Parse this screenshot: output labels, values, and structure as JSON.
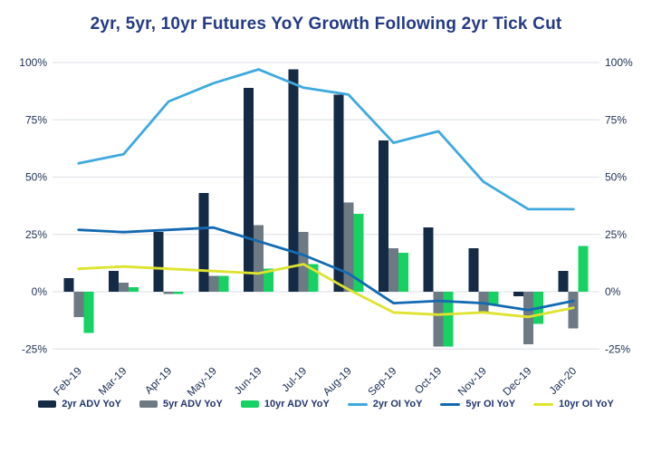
{
  "title": "2yr, 5yr, 10yr Futures YoY Growth Following 2yr Tick Cut",
  "colors": {
    "title_text": "#243a84",
    "axis_text": "#1d3055",
    "gridline": "#e0e4e9"
  },
  "axes": {
    "y_ticks": [
      "100%",
      "75%",
      "50%",
      "25%",
      "0%",
      "-25%"
    ],
    "y_tick_values": [
      100,
      75,
      50,
      25,
      0,
      -25
    ],
    "right_axis_mirrored": true
  },
  "chart_data": {
    "type": "bar",
    "subtype": "grouped-bars-with-lines",
    "categories": [
      "Feb-19",
      "Mar-19",
      "Apr-19",
      "May-19",
      "Jun-19",
      "Jul-19",
      "Aug-19",
      "Sep-19",
      "Oct-19",
      "Nov-19",
      "Dec-19",
      "Jan-20"
    ],
    "bar_series": [
      {
        "name": "2yr ADV YoY",
        "color": "#152b45",
        "values": [
          6,
          9,
          26,
          43,
          89,
          97,
          86,
          66,
          28,
          19,
          -2,
          9
        ]
      },
      {
        "name": "5yr ADV YoY",
        "color": "#6d7983",
        "values": [
          -11,
          4,
          -1,
          7,
          29,
          26,
          39,
          19,
          -24,
          -9,
          -23,
          -16
        ]
      },
      {
        "name": "10yr ADV YoY",
        "color": "#15d263",
        "values": [
          -18,
          2,
          -1,
          7,
          10,
          12,
          34,
          17,
          -24,
          -6,
          -14,
          20
        ]
      }
    ],
    "line_series": [
      {
        "name": "2yr OI YoY",
        "color": "#3fa9de",
        "values": [
          56,
          60,
          83,
          91,
          97,
          89,
          86,
          65,
          70,
          48,
          36,
          36
        ]
      },
      {
        "name": "5yr OI YoY",
        "color": "#136ab1",
        "values": [
          27,
          26,
          27,
          28,
          22,
          16,
          8,
          -5,
          -4,
          -5,
          -8,
          -4
        ]
      },
      {
        "name": "10yr OI YoY",
        "color": "#dde32e",
        "values": [
          10,
          11,
          10,
          9,
          8,
          12,
          1,
          -9,
          -10,
          -9,
          -11,
          -7
        ]
      }
    ],
    "title": "2yr, 5yr, 10yr Futures YoY Growth Following 2yr Tick Cut",
    "xlabel": "",
    "ylabel": "",
    "ylim": [
      -25,
      100
    ],
    "grid": true,
    "legend_position": "bottom"
  }
}
